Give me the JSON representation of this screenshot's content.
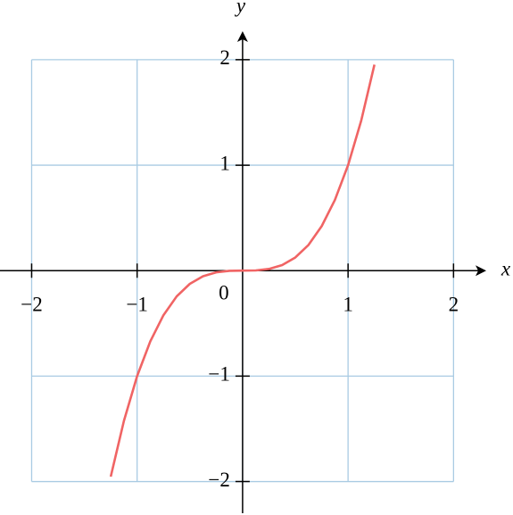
{
  "chart_data": {
    "type": "line",
    "x_label": "x",
    "y_label": "y",
    "xlim": [
      -2.3,
      2.31
    ],
    "ylim": [
      -2.3,
      2.27
    ],
    "xticks": [
      {
        "value": -2,
        "label": "−2"
      },
      {
        "value": -1,
        "label": "−1"
      },
      0,
      1,
      2
    ],
    "yticks": [
      {
        "value": -2,
        "label": "−2"
      },
      {
        "value": -1,
        "label": "−1"
      },
      1,
      2
    ],
    "grid": true,
    "grid_color": "#a9cbe3",
    "series": [
      {
        "color": "#f06464",
        "x": [
          -1.25,
          -1.125,
          -1,
          -0.875,
          -0.75,
          -0.625,
          -0.5,
          -0.375,
          -0.25,
          -0.125,
          0,
          0.125,
          0.25,
          0.375,
          0.5,
          0.625,
          0.75,
          0.875,
          1,
          1.125,
          1.25
        ],
        "values": [
          -1.953,
          -1.424,
          -1,
          -0.67,
          -0.422,
          -0.244,
          -0.125,
          -0.053,
          -0.016,
          -0.002,
          0,
          0.002,
          0.016,
          0.053,
          0.125,
          0.244,
          0.422,
          0.67,
          1,
          1.424,
          1.953
        ]
      }
    ]
  }
}
